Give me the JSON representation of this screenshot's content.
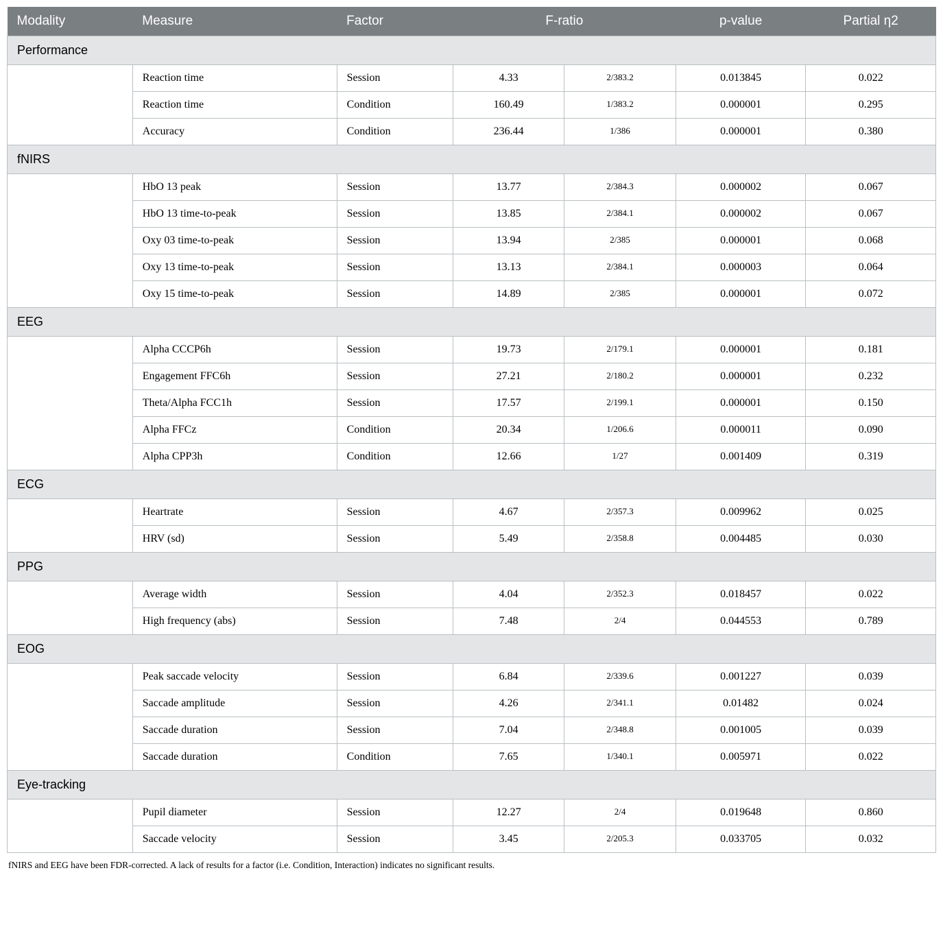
{
  "header": {
    "modality": "Modality",
    "measure": "Measure",
    "factor": "Factor",
    "fratio": "F-ratio",
    "pvalue": "p-value",
    "eta": "Partial η2"
  },
  "footnote": "fNIRS and EEG have been FDR-corrected. A lack of results for a factor (i.e. Condition, Interaction) indicates no significant results.",
  "sections": [
    {
      "title": "Performance",
      "rows": [
        {
          "measure": "Reaction time",
          "factor": "Session",
          "f": "4.33",
          "df": "2/383.2",
          "p": "0.013845",
          "eta": "0.022"
        },
        {
          "measure": "Reaction time",
          "factor": "Condition",
          "f": "160.49",
          "df": "1/383.2",
          "p": "0.000001",
          "eta": "0.295"
        },
        {
          "measure": "Accuracy",
          "factor": "Condition",
          "f": "236.44",
          "df": "1/386",
          "p": "0.000001",
          "eta": "0.380"
        }
      ]
    },
    {
      "title": "fNIRS",
      "rows": [
        {
          "measure": "HbO 13 peak",
          "factor": "Session",
          "f": "13.77",
          "df": "2/384.3",
          "p": "0.000002",
          "eta": "0.067"
        },
        {
          "measure": "HbO 13 time-to-peak",
          "factor": "Session",
          "f": "13.85",
          "df": "2/384.1",
          "p": "0.000002",
          "eta": "0.067"
        },
        {
          "measure": "Oxy 03 time-to-peak",
          "factor": "Session",
          "f": "13.94",
          "df": "2/385",
          "p": "0.000001",
          "eta": "0.068"
        },
        {
          "measure": "Oxy 13 time-to-peak",
          "factor": "Session",
          "f": "13.13",
          "df": "2/384.1",
          "p": "0.000003",
          "eta": "0.064"
        },
        {
          "measure": "Oxy 15 time-to-peak",
          "factor": "Session",
          "f": "14.89",
          "df": "2/385",
          "p": "0.000001",
          "eta": "0.072"
        }
      ]
    },
    {
      "title": "EEG",
      "rows": [
        {
          "measure": "Alpha CCCP6h",
          "factor": "Session",
          "f": "19.73",
          "df": "2/179.1",
          "p": "0.000001",
          "eta": "0.181"
        },
        {
          "measure": "Engagement FFC6h",
          "factor": "Session",
          "f": "27.21",
          "df": "2/180.2",
          "p": "0.000001",
          "eta": "0.232"
        },
        {
          "measure": "Theta/Alpha FCC1h",
          "factor": "Session",
          "f": "17.57",
          "df": "2/199.1",
          "p": "0.000001",
          "eta": "0.150"
        },
        {
          "measure": "Alpha FFCz",
          "factor": "Condition",
          "f": "20.34",
          "df": "1/206.6",
          "p": "0.000011",
          "eta": "0.090"
        },
        {
          "measure": "Alpha CPP3h",
          "factor": "Condition",
          "f": "12.66",
          "df": "1/27",
          "p": "0.001409",
          "eta": "0.319"
        }
      ]
    },
    {
      "title": "ECG",
      "rows": [
        {
          "measure": "Heartrate",
          "factor": "Session",
          "f": "4.67",
          "df": "2/357.3",
          "p": "0.009962",
          "eta": "0.025"
        },
        {
          "measure": "HRV (sd)",
          "factor": "Session",
          "f": "5.49",
          "df": "2/358.8",
          "p": "0.004485",
          "eta": "0.030"
        }
      ]
    },
    {
      "title": "PPG",
      "rows": [
        {
          "measure": "Average width",
          "factor": "Session",
          "f": "4.04",
          "df": "2/352.3",
          "p": "0.018457",
          "eta": "0.022"
        },
        {
          "measure": "High frequency (abs)",
          "factor": "Session",
          "f": "7.48",
          "df": "2/4",
          "p": "0.044553",
          "eta": "0.789"
        }
      ]
    },
    {
      "title": "EOG",
      "rows": [
        {
          "measure": "Peak saccade velocity",
          "factor": "Session",
          "f": "6.84",
          "df": "2/339.6",
          "p": "0.001227",
          "eta": "0.039"
        },
        {
          "measure": "Saccade amplitude",
          "factor": "Session",
          "f": "4.26",
          "df": "2/341.1",
          "p": "0.01482",
          "eta": "0.024"
        },
        {
          "measure": "Saccade duration",
          "factor": "Session",
          "f": "7.04",
          "df": "2/348.8",
          "p": "0.001005",
          "eta": "0.039"
        },
        {
          "measure": "Saccade duration",
          "factor": "Condition",
          "f": "7.65",
          "df": "1/340.1",
          "p": "0.005971",
          "eta": "0.022"
        }
      ]
    },
    {
      "title": "Eye-tracking",
      "rows": [
        {
          "measure": "Pupil diameter",
          "factor": "Session",
          "f": "12.27",
          "df": "2/4",
          "p": "0.019648",
          "eta": "0.860"
        },
        {
          "measure": "Saccade velocity",
          "factor": "Session",
          "f": "3.45",
          "df": "2/205.3",
          "p": "0.033705",
          "eta": "0.032"
        }
      ]
    }
  ],
  "style": {
    "header_bg": "#7a7f82",
    "header_fg": "#ffffff",
    "section_bg": "#e4e5e6",
    "border": "#b9bfc2",
    "body_bg": "#ffffff",
    "text": "#000000"
  }
}
